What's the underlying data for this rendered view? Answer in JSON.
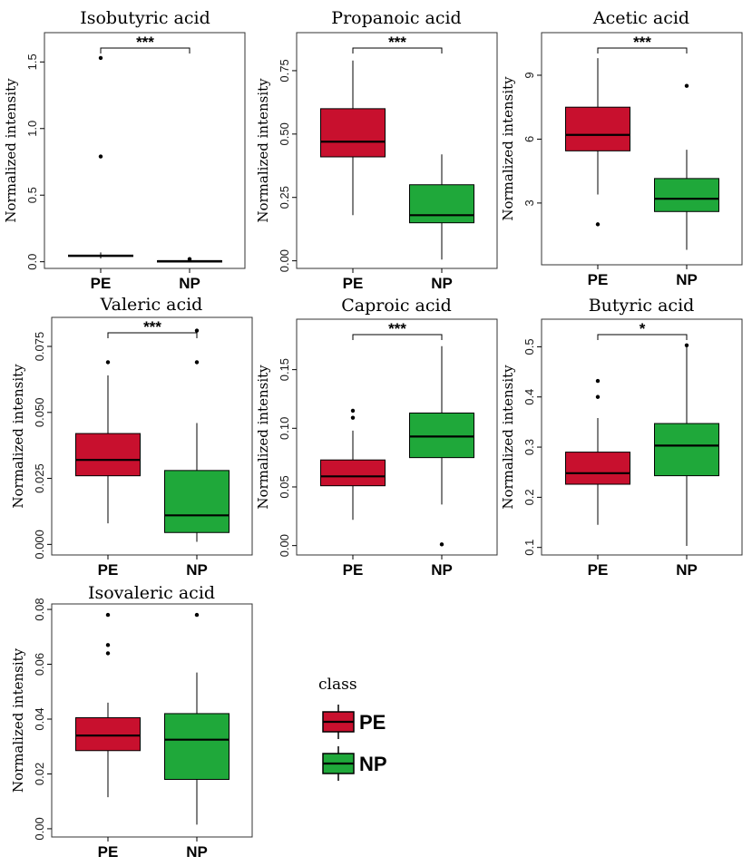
{
  "colors": {
    "PE": "#c8102e",
    "NP": "#1fa83a",
    "frame": "#333333",
    "axis": "#000000"
  },
  "legend": {
    "title": "class",
    "items": [
      {
        "key": "PE",
        "label": "PE"
      },
      {
        "key": "NP",
        "label": "NP"
      }
    ]
  },
  "chart_data": [
    {
      "type": "boxplot",
      "title": "Isobutyric acid",
      "ylabel": "Normalized intensity",
      "categories": [
        "PE",
        "NP"
      ],
      "ylim": [
        -0.05,
        1.72
      ],
      "yticks": [
        0.0,
        0.5,
        1.0,
        1.5
      ],
      "ytick_labels": [
        "0.0",
        "0.5",
        "1.0",
        "1.5"
      ],
      "significance": "***",
      "boxes": [
        {
          "group": "PE",
          "min": 0.025,
          "q1": 0.04,
          "median": 0.045,
          "q3": 0.05,
          "max": 0.07,
          "outliers": [
            1.53,
            0.79
          ]
        },
        {
          "group": "NP",
          "min": 0.0,
          "q1": 0.003,
          "median": 0.005,
          "q3": 0.008,
          "max": 0.012,
          "outliers": [
            0.02
          ]
        }
      ]
    },
    {
      "type": "boxplot",
      "title": "Propanoic acid",
      "ylabel": "Normalized intensity",
      "categories": [
        "PE",
        "NP"
      ],
      "ylim": [
        -0.03,
        0.9
      ],
      "yticks": [
        0.0,
        0.25,
        0.5,
        0.75
      ],
      "ytick_labels": [
        "0.00",
        "0.25",
        "0.50",
        "0.75"
      ],
      "significance": "***",
      "boxes": [
        {
          "group": "PE",
          "min": 0.18,
          "q1": 0.41,
          "median": 0.47,
          "q3": 0.6,
          "max": 0.79,
          "outliers": []
        },
        {
          "group": "NP",
          "min": 0.005,
          "q1": 0.15,
          "median": 0.18,
          "q3": 0.3,
          "max": 0.42,
          "outliers": []
        }
      ]
    },
    {
      "type": "boxplot",
      "title": "Acetic acid",
      "ylabel": "Normalized intensity",
      "categories": [
        "PE",
        "NP"
      ],
      "ylim": [
        0.1,
        11.0
      ],
      "yticks": [
        3,
        6,
        9
      ],
      "ytick_labels": [
        "3",
        "6",
        "9"
      ],
      "significance": "***",
      "boxes": [
        {
          "group": "PE",
          "min": 3.4,
          "q1": 5.45,
          "median": 6.2,
          "q3": 7.5,
          "max": 9.8,
          "outliers": [
            2.0
          ]
        },
        {
          "group": "NP",
          "min": 0.8,
          "q1": 2.6,
          "median": 3.2,
          "q3": 4.15,
          "max": 5.5,
          "outliers": [
            8.5
          ]
        }
      ]
    },
    {
      "type": "boxplot",
      "title": "Valeric acid",
      "ylabel": "Normalized intensity",
      "categories": [
        "PE",
        "NP"
      ],
      "ylim": [
        -0.004,
        0.086
      ],
      "yticks": [
        0.0,
        0.025,
        0.05,
        0.075
      ],
      "ytick_labels": [
        "0.000",
        "0.025",
        "0.050",
        "0.075"
      ],
      "significance": "***",
      "boxes": [
        {
          "group": "PE",
          "min": 0.008,
          "q1": 0.026,
          "median": 0.032,
          "q3": 0.042,
          "max": 0.064,
          "outliers": [
            0.069
          ]
        },
        {
          "group": "NP",
          "min": 0.001,
          "q1": 0.0045,
          "median": 0.011,
          "q3": 0.028,
          "max": 0.046,
          "outliers": [
            0.069,
            0.081
          ]
        }
      ]
    },
    {
      "type": "boxplot",
      "title": "Caproic acid",
      "ylabel": "Normalized intensity",
      "categories": [
        "PE",
        "NP"
      ],
      "ylim": [
        -0.008,
        0.193
      ],
      "yticks": [
        0.0,
        0.05,
        0.1,
        0.15
      ],
      "ytick_labels": [
        "0.00",
        "0.05",
        "0.10",
        "0.15"
      ],
      "significance": "***",
      "boxes": [
        {
          "group": "PE",
          "min": 0.022,
          "q1": 0.051,
          "median": 0.059,
          "q3": 0.073,
          "max": 0.098,
          "outliers": [
            0.109,
            0.115
          ]
        },
        {
          "group": "NP",
          "min": 0.035,
          "q1": 0.075,
          "median": 0.093,
          "q3": 0.113,
          "max": 0.17,
          "outliers": [
            0.001
          ]
        }
      ]
    },
    {
      "type": "boxplot",
      "title": "Butyric acid",
      "ylabel": "Normalized intensity",
      "categories": [
        "PE",
        "NP"
      ],
      "ylim": [
        0.085,
        0.555
      ],
      "yticks": [
        0.1,
        0.2,
        0.3,
        0.4,
        0.5
      ],
      "ytick_labels": [
        "0.1",
        "0.2",
        "0.3",
        "0.4",
        "0.5"
      ],
      "significance": "*",
      "boxes": [
        {
          "group": "PE",
          "min": 0.145,
          "q1": 0.226,
          "median": 0.248,
          "q3": 0.29,
          "max": 0.358,
          "outliers": [
            0.4,
            0.432
          ]
        },
        {
          "group": "NP",
          "min": 0.103,
          "q1": 0.243,
          "median": 0.303,
          "q3": 0.347,
          "max": 0.502,
          "outliers": [
            0.503
          ]
        }
      ]
    },
    {
      "type": "boxplot",
      "title": "Isovaleric acid",
      "ylabel": "Normalized intensity",
      "categories": [
        "PE",
        "NP"
      ],
      "ylim": [
        -0.003,
        0.082
      ],
      "yticks": [
        0.0,
        0.02,
        0.04,
        0.06,
        0.08
      ],
      "ytick_labels": [
        "0.00",
        "0.02",
        "0.04",
        "0.06",
        "0.08"
      ],
      "significance": "",
      "boxes": [
        {
          "group": "PE",
          "min": 0.0115,
          "q1": 0.0285,
          "median": 0.034,
          "q3": 0.0405,
          "max": 0.046,
          "outliers": [
            0.064,
            0.067,
            0.078
          ]
        },
        {
          "group": "NP",
          "min": 0.0015,
          "q1": 0.018,
          "median": 0.0325,
          "q3": 0.042,
          "max": 0.057,
          "outliers": [
            0.078
          ]
        }
      ]
    }
  ]
}
